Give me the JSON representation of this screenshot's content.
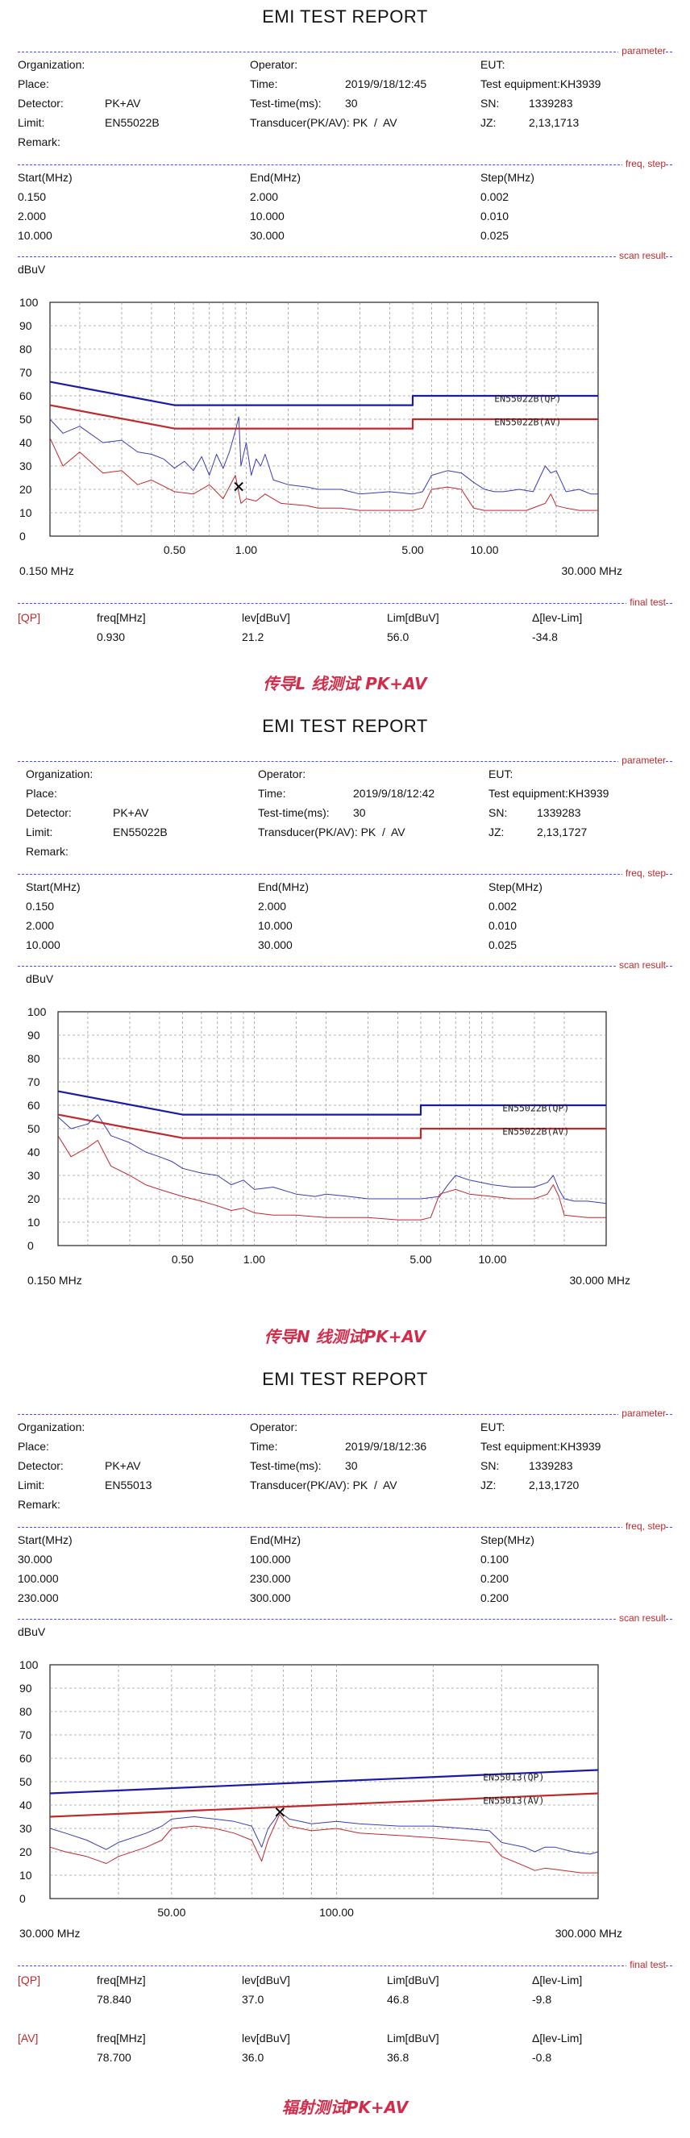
{
  "reports": [
    {
      "title": "EMI TEST REPORT",
      "sections": {
        "parameter": "parameter",
        "freq_step": "freq, step",
        "scan_result": "scan result",
        "final_test": "final test"
      },
      "params": {
        "organization_label": "Organization:",
        "operator_label": "Operator:",
        "eut_label": "EUT:",
        "place_label": "Place:",
        "time_label": "Time:",
        "time": "2019/9/18/12:45",
        "test_equipment": "Test equipment:KH3939",
        "detector_label": "Detector:",
        "detector": "PK+AV",
        "test_time_label": "Test-time(ms):",
        "test_time": "30",
        "sn_label": "SN:",
        "sn": "1339283",
        "limit_label": "Limit:",
        "limit": "EN55022B",
        "transducer": "Transducer(PK/AV): PK  /  AV",
        "jz_label": "JZ:",
        "jz": "2,13,1713",
        "remark_label": "Remark:"
      },
      "freq_table": {
        "headers": [
          "Start(MHz)",
          "End(MHz)",
          "Step(MHz)"
        ],
        "rows": [
          [
            "0.150",
            "2.000",
            "0.002"
          ],
          [
            "2.000",
            "10.000",
            "0.010"
          ],
          [
            "10.000",
            "30.000",
            "0.025"
          ]
        ]
      },
      "y_unit": "dBuV",
      "chart_data": {
        "type": "line",
        "x_scale": "log",
        "xlim": [
          0.15,
          30
        ],
        "ylim": [
          0,
          100
        ],
        "y_ticks": [
          0,
          10,
          20,
          30,
          40,
          50,
          60,
          70,
          80,
          90,
          100
        ],
        "x_ticks": [
          {
            "v": 0.5,
            "label": "0.50"
          },
          {
            "v": 1.0,
            "label": "1.00"
          },
          {
            "v": 5.0,
            "label": "5.00"
          },
          {
            "v": 10.0,
            "label": "10.00"
          }
        ],
        "x_min_label": "0.150 MHz",
        "x_max_label": "30.000 MHz",
        "series": [
          {
            "name": "EN55022B(QP)",
            "color": "#1a1aa8",
            "width": 2.2,
            "x": [
              0.15,
              0.5,
              5.0,
              5.0,
              30
            ],
            "y": [
              66,
              56,
              56,
              60,
              60
            ]
          },
          {
            "name": "EN55022B(AV)",
            "color": "#c0282c",
            "width": 2.2,
            "x": [
              0.15,
              0.5,
              5.0,
              5.0,
              30
            ],
            "y": [
              56,
              46,
              46,
              50,
              50
            ]
          },
          {
            "color": "#3b3bb5",
            "width": 1,
            "x": [
              0.15,
              0.17,
              0.2,
              0.25,
              0.3,
              0.35,
              0.4,
              0.45,
              0.5,
              0.55,
              0.6,
              0.65,
              0.7,
              0.75,
              0.8,
              0.85,
              0.9,
              0.93,
              0.95,
              1.0,
              1.05,
              1.1,
              1.15,
              1.2,
              1.3,
              1.5,
              1.8,
              2.0,
              2.5,
              3.0,
              4.0,
              5.0,
              5.5,
              6.0,
              7.0,
              8.0,
              9.0,
              10,
              11,
              12,
              14,
              16,
              18,
              19,
              20,
              22,
              25,
              28,
              30
            ],
            "y": [
              50,
              44,
              47,
              40,
              41,
              36,
              35,
              33,
              29,
              32,
              28,
              34,
              26,
              35,
              29,
              36,
              45,
              51,
              30,
              40,
              26,
              33,
              30,
              35,
              24,
              22,
              21,
              20,
              20,
              18,
              19,
              18,
              19,
              26,
              28,
              27,
              23,
              20,
              19,
              19,
              20,
              19,
              30,
              27,
              28,
              19,
              20,
              18,
              18
            ]
          },
          {
            "color": "#c0282c",
            "width": 1,
            "x": [
              0.15,
              0.17,
              0.2,
              0.25,
              0.3,
              0.35,
              0.4,
              0.5,
              0.6,
              0.7,
              0.8,
              0.9,
              0.95,
              1.0,
              1.1,
              1.2,
              1.4,
              1.8,
              2.0,
              2.5,
              3.0,
              4.0,
              5.0,
              5.5,
              6.0,
              7.0,
              8.0,
              9.0,
              10,
              12,
              15,
              18,
              19,
              20,
              22,
              25,
              30
            ],
            "y": [
              42,
              30,
              36,
              27,
              28,
              22,
              24,
              19,
              18,
              22,
              16,
              26,
              14,
              16,
              15,
              18,
              14,
              13,
              12,
              12,
              11,
              11,
              11,
              12,
              20,
              21,
              20,
              12,
              11,
              11,
              11,
              14,
              18,
              13,
              12,
              11,
              11
            ]
          }
        ],
        "marker": {
          "x": 0.93,
          "y": 21.2,
          "symbol": "x"
        },
        "line_labels": [
          {
            "text": "EN55022B(QP)",
            "x": 11.0,
            "y": 57.5
          },
          {
            "text": "EN55022B(AV)",
            "x": 11.0,
            "y": 47.5
          }
        ]
      },
      "final": {
        "rows": [
          {
            "mode": "[QP]",
            "freq_label": "freq[MHz]",
            "freq": "0.930",
            "lev_label": "lev[dBuV]",
            "lev": "21.2",
            "lim_label": "Lim[dBuV]",
            "lim": "56.0",
            "delta_label": "Δ[lev-Lim]",
            "delta": "-34.8"
          }
        ]
      },
      "caption": "传导L 线测试 PK+AV"
    },
    {
      "title": "EMI TEST REPORT",
      "sections": {
        "parameter": "parameter",
        "freq_step": "freq, step",
        "scan_result": "scan result"
      },
      "params": {
        "organization_label": "Organization:",
        "operator_label": "Operator:",
        "eut_label": "EUT:",
        "place_label": "Place:",
        "time_label": "Time:",
        "time": "2019/9/18/12:42",
        "test_equipment": "Test equipment:KH3939",
        "detector_label": "Detector:",
        "detector": "PK+AV",
        "test_time_label": "Test-time(ms):",
        "test_time": "30",
        "sn_label": "SN:",
        "sn": "1339283",
        "limit_label": "Limit:",
        "limit": "EN55022B",
        "transducer": "Transducer(PK/AV): PK  /  AV",
        "jz_label": "JZ:",
        "jz": "2,13,1727",
        "remark_label": "Remark:"
      },
      "freq_table": {
        "headers": [
          "Start(MHz)",
          "End(MHz)",
          "Step(MHz)"
        ],
        "rows": [
          [
            "0.150",
            "2.000",
            "0.002"
          ],
          [
            "2.000",
            "10.000",
            "0.010"
          ],
          [
            "10.000",
            "30.000",
            "0.025"
          ]
        ]
      },
      "y_unit": "dBuV",
      "chart_data": {
        "type": "line",
        "x_scale": "log",
        "xlim": [
          0.15,
          30
        ],
        "ylim": [
          0,
          100
        ],
        "y_ticks": [
          0,
          10,
          20,
          30,
          40,
          50,
          60,
          70,
          80,
          90,
          100
        ],
        "x_ticks": [
          {
            "v": 0.5,
            "label": "0.50"
          },
          {
            "v": 1.0,
            "label": "1.00"
          },
          {
            "v": 5.0,
            "label": "5.00"
          },
          {
            "v": 10.0,
            "label": "10.00"
          }
        ],
        "x_min_label": "0.150 MHz",
        "x_max_label": "30.000 MHz",
        "series": [
          {
            "name": "EN55022B(QP)",
            "color": "#1a1aa8",
            "width": 2.2,
            "x": [
              0.15,
              0.5,
              5.0,
              5.0,
              30
            ],
            "y": [
              66,
              56,
              56,
              60,
              60
            ]
          },
          {
            "name": "EN55022B(AV)",
            "color": "#c0282c",
            "width": 2.2,
            "x": [
              0.15,
              0.5,
              5.0,
              5.0,
              30
            ],
            "y": [
              56,
              46,
              46,
              50,
              50
            ]
          },
          {
            "color": "#3b3bb5",
            "width": 1,
            "x": [
              0.15,
              0.17,
              0.2,
              0.22,
              0.25,
              0.3,
              0.35,
              0.4,
              0.45,
              0.5,
              0.6,
              0.7,
              0.8,
              0.9,
              1.0,
              1.2,
              1.5,
              1.8,
              2.0,
              2.5,
              3.0,
              4.0,
              5.0,
              6.0,
              6.5,
              7.0,
              8.0,
              10,
              12,
              15,
              17,
              18,
              19,
              20,
              22,
              25,
              30
            ],
            "y": [
              55,
              50,
              52,
              56,
              47,
              44,
              40,
              38,
              36,
              33,
              31,
              30,
              26,
              28,
              24,
              25,
              22,
              21,
              22,
              21,
              20,
              20,
              20,
              21,
              26,
              30,
              28,
              26,
              25,
              25,
              27,
              30,
              24,
              20,
              19,
              19,
              18
            ]
          },
          {
            "color": "#c0282c",
            "width": 1,
            "x": [
              0.15,
              0.17,
              0.2,
              0.22,
              0.25,
              0.3,
              0.35,
              0.4,
              0.5,
              0.6,
              0.7,
              0.8,
              0.9,
              1.0,
              1.2,
              1.5,
              2.0,
              3.0,
              4.0,
              5.0,
              5.5,
              6.0,
              7.0,
              8.0,
              10,
              12,
              15,
              17,
              18,
              19,
              20,
              25,
              30
            ],
            "y": [
              47,
              38,
              42,
              45,
              34,
              30,
              26,
              24,
              21,
              19,
              17,
              15,
              16,
              14,
              13,
              13,
              12,
              12,
              11,
              11,
              12,
              22,
              24,
              22,
              21,
              20,
              20,
              22,
              26,
              21,
              13,
              12,
              12
            ]
          }
        ],
        "line_labels": [
          {
            "text": "EN55022B(QP)",
            "x": 11.0,
            "y": 57.5
          },
          {
            "text": "EN55022B(AV)",
            "x": 11.0,
            "y": 47.5
          }
        ]
      },
      "caption": "传导N 线测试PK+AV"
    },
    {
      "title": "EMI TEST REPORT",
      "sections": {
        "parameter": "parameter",
        "freq_step": "freq, step",
        "scan_result": "scan result",
        "final_test": "final test"
      },
      "params": {
        "organization_label": "Organization:",
        "operator_label": "Operator:",
        "eut_label": "EUT:",
        "place_label": "Place:",
        "time_label": "Time:",
        "time": "2019/9/18/12:36",
        "test_equipment": "Test equipment:KH3939",
        "detector_label": "Detector:",
        "detector": "PK+AV",
        "test_time_label": "Test-time(ms):",
        "test_time": "30",
        "sn_label": "SN:",
        "sn": "1339283",
        "limit_label": "Limit:",
        "limit": "EN55013",
        "transducer": "Transducer(PK/AV): PK  /  AV",
        "jz_label": "JZ:",
        "jz": "2,13,1720",
        "remark_label": "Remark:"
      },
      "freq_table": {
        "headers": [
          "Start(MHz)",
          "End(MHz)",
          "Step(MHz)"
        ],
        "rows": [
          [
            "30.000",
            "100.000",
            "0.100"
          ],
          [
            "100.000",
            "230.000",
            "0.200"
          ],
          [
            "230.000",
            "300.000",
            "0.200"
          ]
        ]
      },
      "y_unit": "dBuV",
      "chart_data": {
        "type": "line",
        "x_scale": "log",
        "xlim": [
          30,
          300
        ],
        "ylim": [
          0,
          100
        ],
        "y_ticks": [
          0,
          10,
          20,
          30,
          40,
          50,
          60,
          70,
          80,
          90,
          100
        ],
        "x_ticks": [
          {
            "v": 50,
            "label": "50.00"
          },
          {
            "v": 100,
            "label": "100.00"
          }
        ],
        "x_min_label": "30.000 MHz",
        "x_max_label": "300.000 MHz",
        "series": [
          {
            "name": "EN55013(QP)",
            "color": "#1a1aa8",
            "width": 2.2,
            "x": [
              30,
              300
            ],
            "y": [
              45,
              55
            ]
          },
          {
            "name": "EN55013(AV)",
            "color": "#c0282c",
            "width": 2.2,
            "x": [
              30,
              300
            ],
            "y": [
              35,
              45
            ]
          },
          {
            "color": "#3b3bb5",
            "width": 1,
            "x": [
              30,
              32,
              35,
              38,
              40,
              45,
              48,
              50,
              55,
              60,
              65,
              70,
              73,
              75,
              78.84,
              82,
              90,
              100,
              110,
              130,
              150,
              170,
              190,
              200,
              220,
              230,
              240,
              250,
              270,
              290,
              300
            ],
            "y": [
              30,
              28,
              25,
              21,
              24,
              28,
              31,
              34,
              35,
              34,
              33,
              31,
              22,
              30,
              37,
              34,
              32,
              33,
              32,
              31,
              31,
              30,
              29,
              24,
              22,
              20,
              22,
              22,
              20,
              19,
              20
            ]
          },
          {
            "color": "#c0282c",
            "width": 1,
            "x": [
              30,
              32,
              35,
              38,
              40,
              45,
              48,
              50,
              55,
              60,
              65,
              70,
              73,
              75,
              78.7,
              82,
              90,
              100,
              110,
              130,
              150,
              170,
              190,
              200,
              220,
              230,
              240,
              260,
              280,
              300
            ],
            "y": [
              22,
              20,
              18,
              15,
              18,
              22,
              25,
              30,
              31,
              30,
              28,
              25,
              16,
              25,
              36,
              31,
              29,
              30,
              28,
              27,
              26,
              25,
              24,
              18,
              14,
              12,
              13,
              12,
              11,
              11
            ]
          }
        ],
        "marker": {
          "x": 78.84,
          "y": 37.0,
          "symbol": "x"
        },
        "line_labels": [
          {
            "text": "EN55013(QP)",
            "x": 185,
            "y": 50.5
          },
          {
            "text": "EN55013(AV)",
            "x": 185,
            "y": 40.5
          }
        ]
      },
      "final": {
        "rows": [
          {
            "mode": "[QP]",
            "freq_label": "freq[MHz]",
            "freq": "78.840",
            "lev_label": "lev[dBuV]",
            "lev": "37.0",
            "lim_label": "Lim[dBuV]",
            "lim": "46.8",
            "delta_label": "Δ[lev-Lim]",
            "delta": "-9.8"
          },
          {
            "mode": "[AV]",
            "freq_label": "freq[MHz]",
            "freq": "78.700",
            "lev_label": "lev[dBuV]",
            "lev": "36.0",
            "lim_label": "Lim[dBuV]",
            "lim": "36.8",
            "delta_label": "Δ[lev-Lim]",
            "delta": "-0.8"
          }
        ]
      },
      "caption": "辐射测试PK+AV"
    }
  ]
}
